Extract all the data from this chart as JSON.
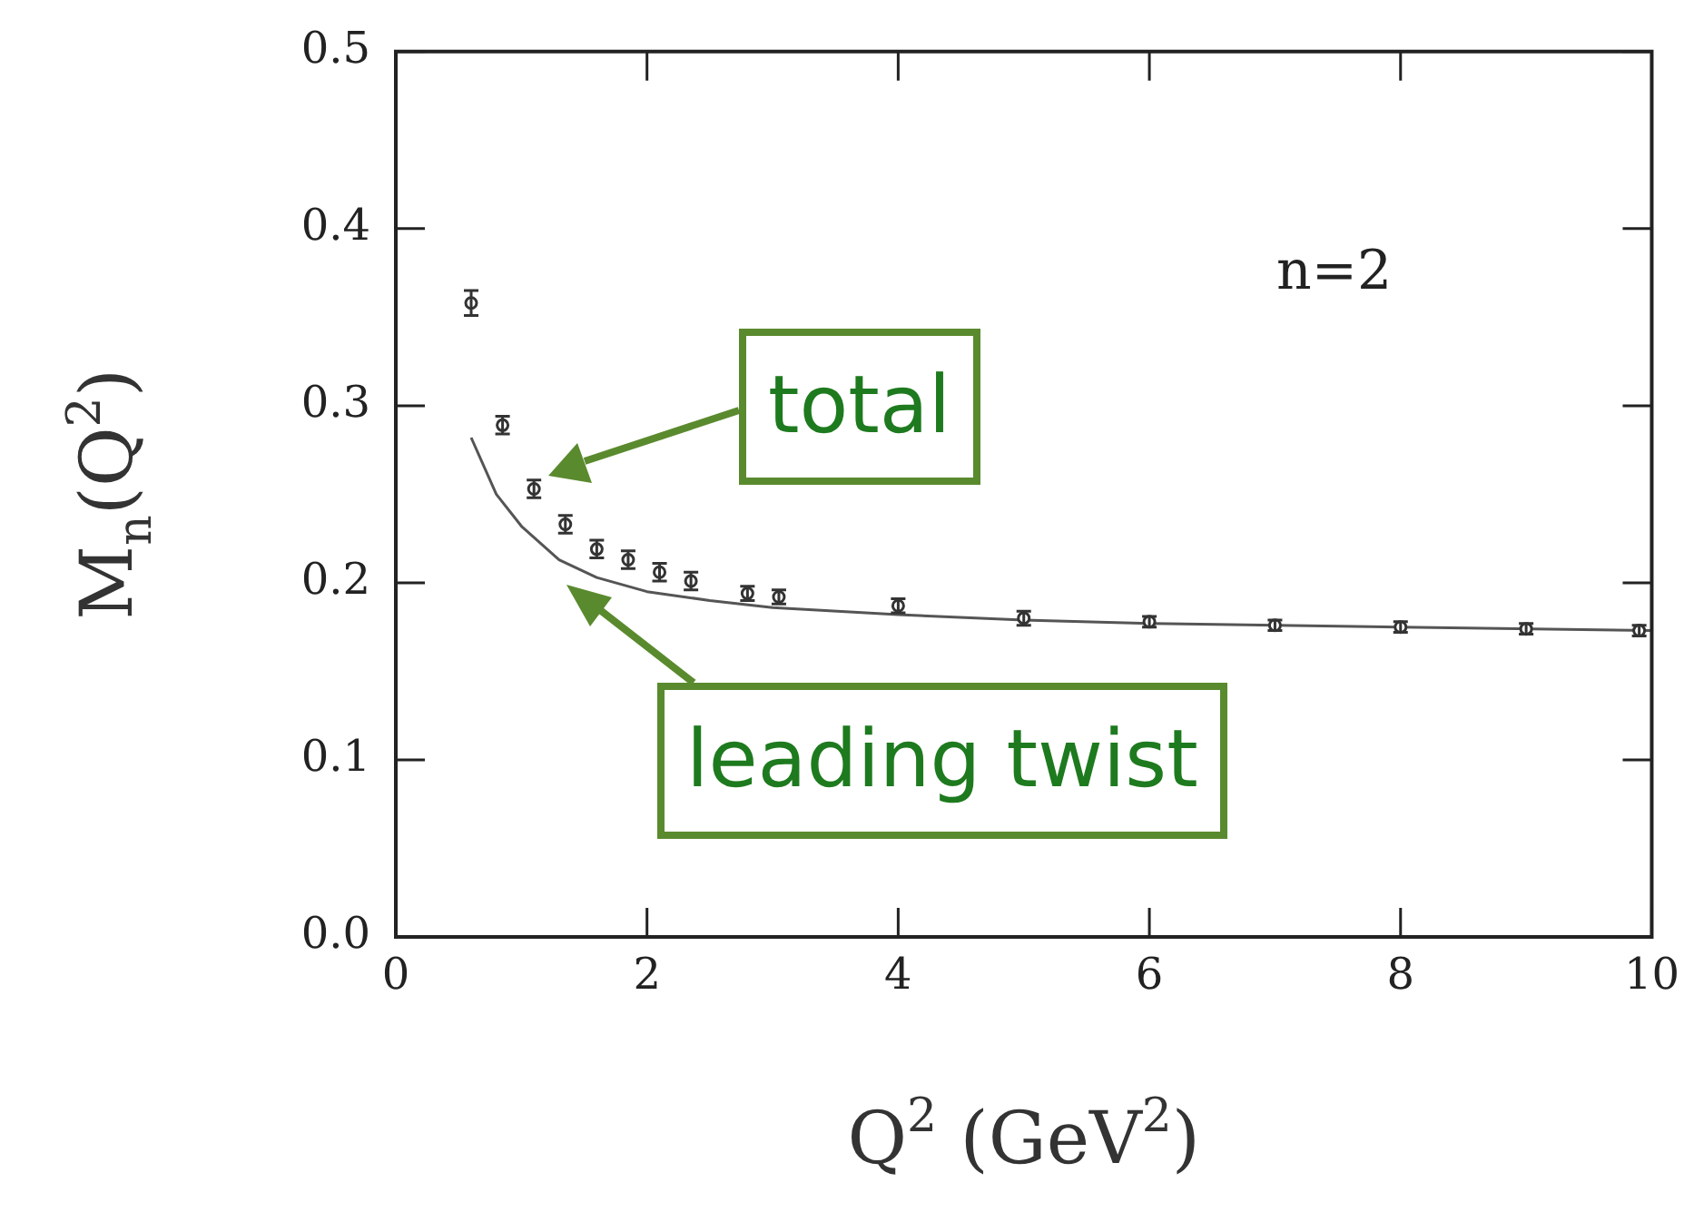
{
  "chart_data": {
    "type": "scatter",
    "xlabel": "Q$^{2}$ (GeV$^{2}$)",
    "ylabel": "M$_{n}$(Q$^{2}$)",
    "xlim": [
      0,
      10
    ],
    "xticks": [
      0,
      2,
      4,
      6,
      8,
      10
    ],
    "ylim": [
      0,
      0.5
    ],
    "yticks": [
      {
        "value": 0,
        "label": "0.0"
      },
      {
        "value": 0.1,
        "label": "0.1"
      },
      {
        "value": 0.2,
        "label": "0.2"
      },
      {
        "value": 0.3,
        "label": "0.3"
      },
      {
        "value": 0.4,
        "label": "0.4"
      },
      {
        "value": 0.5,
        "label": "0.5"
      }
    ],
    "grid": false,
    "marker": "circle",
    "series": [
      {
        "color": "#333333",
        "x": [
          0.6,
          0.85,
          1.1,
          1.35,
          1.6,
          1.85,
          2.1,
          2.35,
          2.8,
          3.05,
          4,
          5,
          6,
          7,
          8,
          9,
          9.9
        ],
        "values": [
          0.358,
          0.289,
          0.253,
          0.233,
          0.219,
          0.213,
          0.206,
          0.201,
          0.194,
          0.192,
          0.187,
          0.18,
          0.178,
          0.176,
          0.175,
          0.174,
          0.173
        ],
        "errors": [
          0.007,
          0.005,
          0.005,
          0.005,
          0.005,
          0.005,
          0.005,
          0.005,
          0.004,
          0.004,
          0.004,
          0.004,
          0.003,
          0.003,
          0.003,
          0.003,
          0.003
        ]
      },
      {
        "type": "line",
        "color": "#555555",
        "marker": "none",
        "line_style": "solid",
        "x": [
          0.6,
          0.8,
          1.0,
          1.3,
          1.6,
          2,
          2.5,
          3,
          4,
          5,
          6,
          8,
          10
        ],
        "values": [
          0.282,
          0.25,
          0.232,
          0.213,
          0.203,
          0.195,
          0.19,
          0.186,
          0.182,
          0.179,
          0.177,
          0.175,
          0.173
        ]
      }
    ],
    "annotations": [
      "n=2",
      "total",
      "leading twist"
    ]
  }
}
